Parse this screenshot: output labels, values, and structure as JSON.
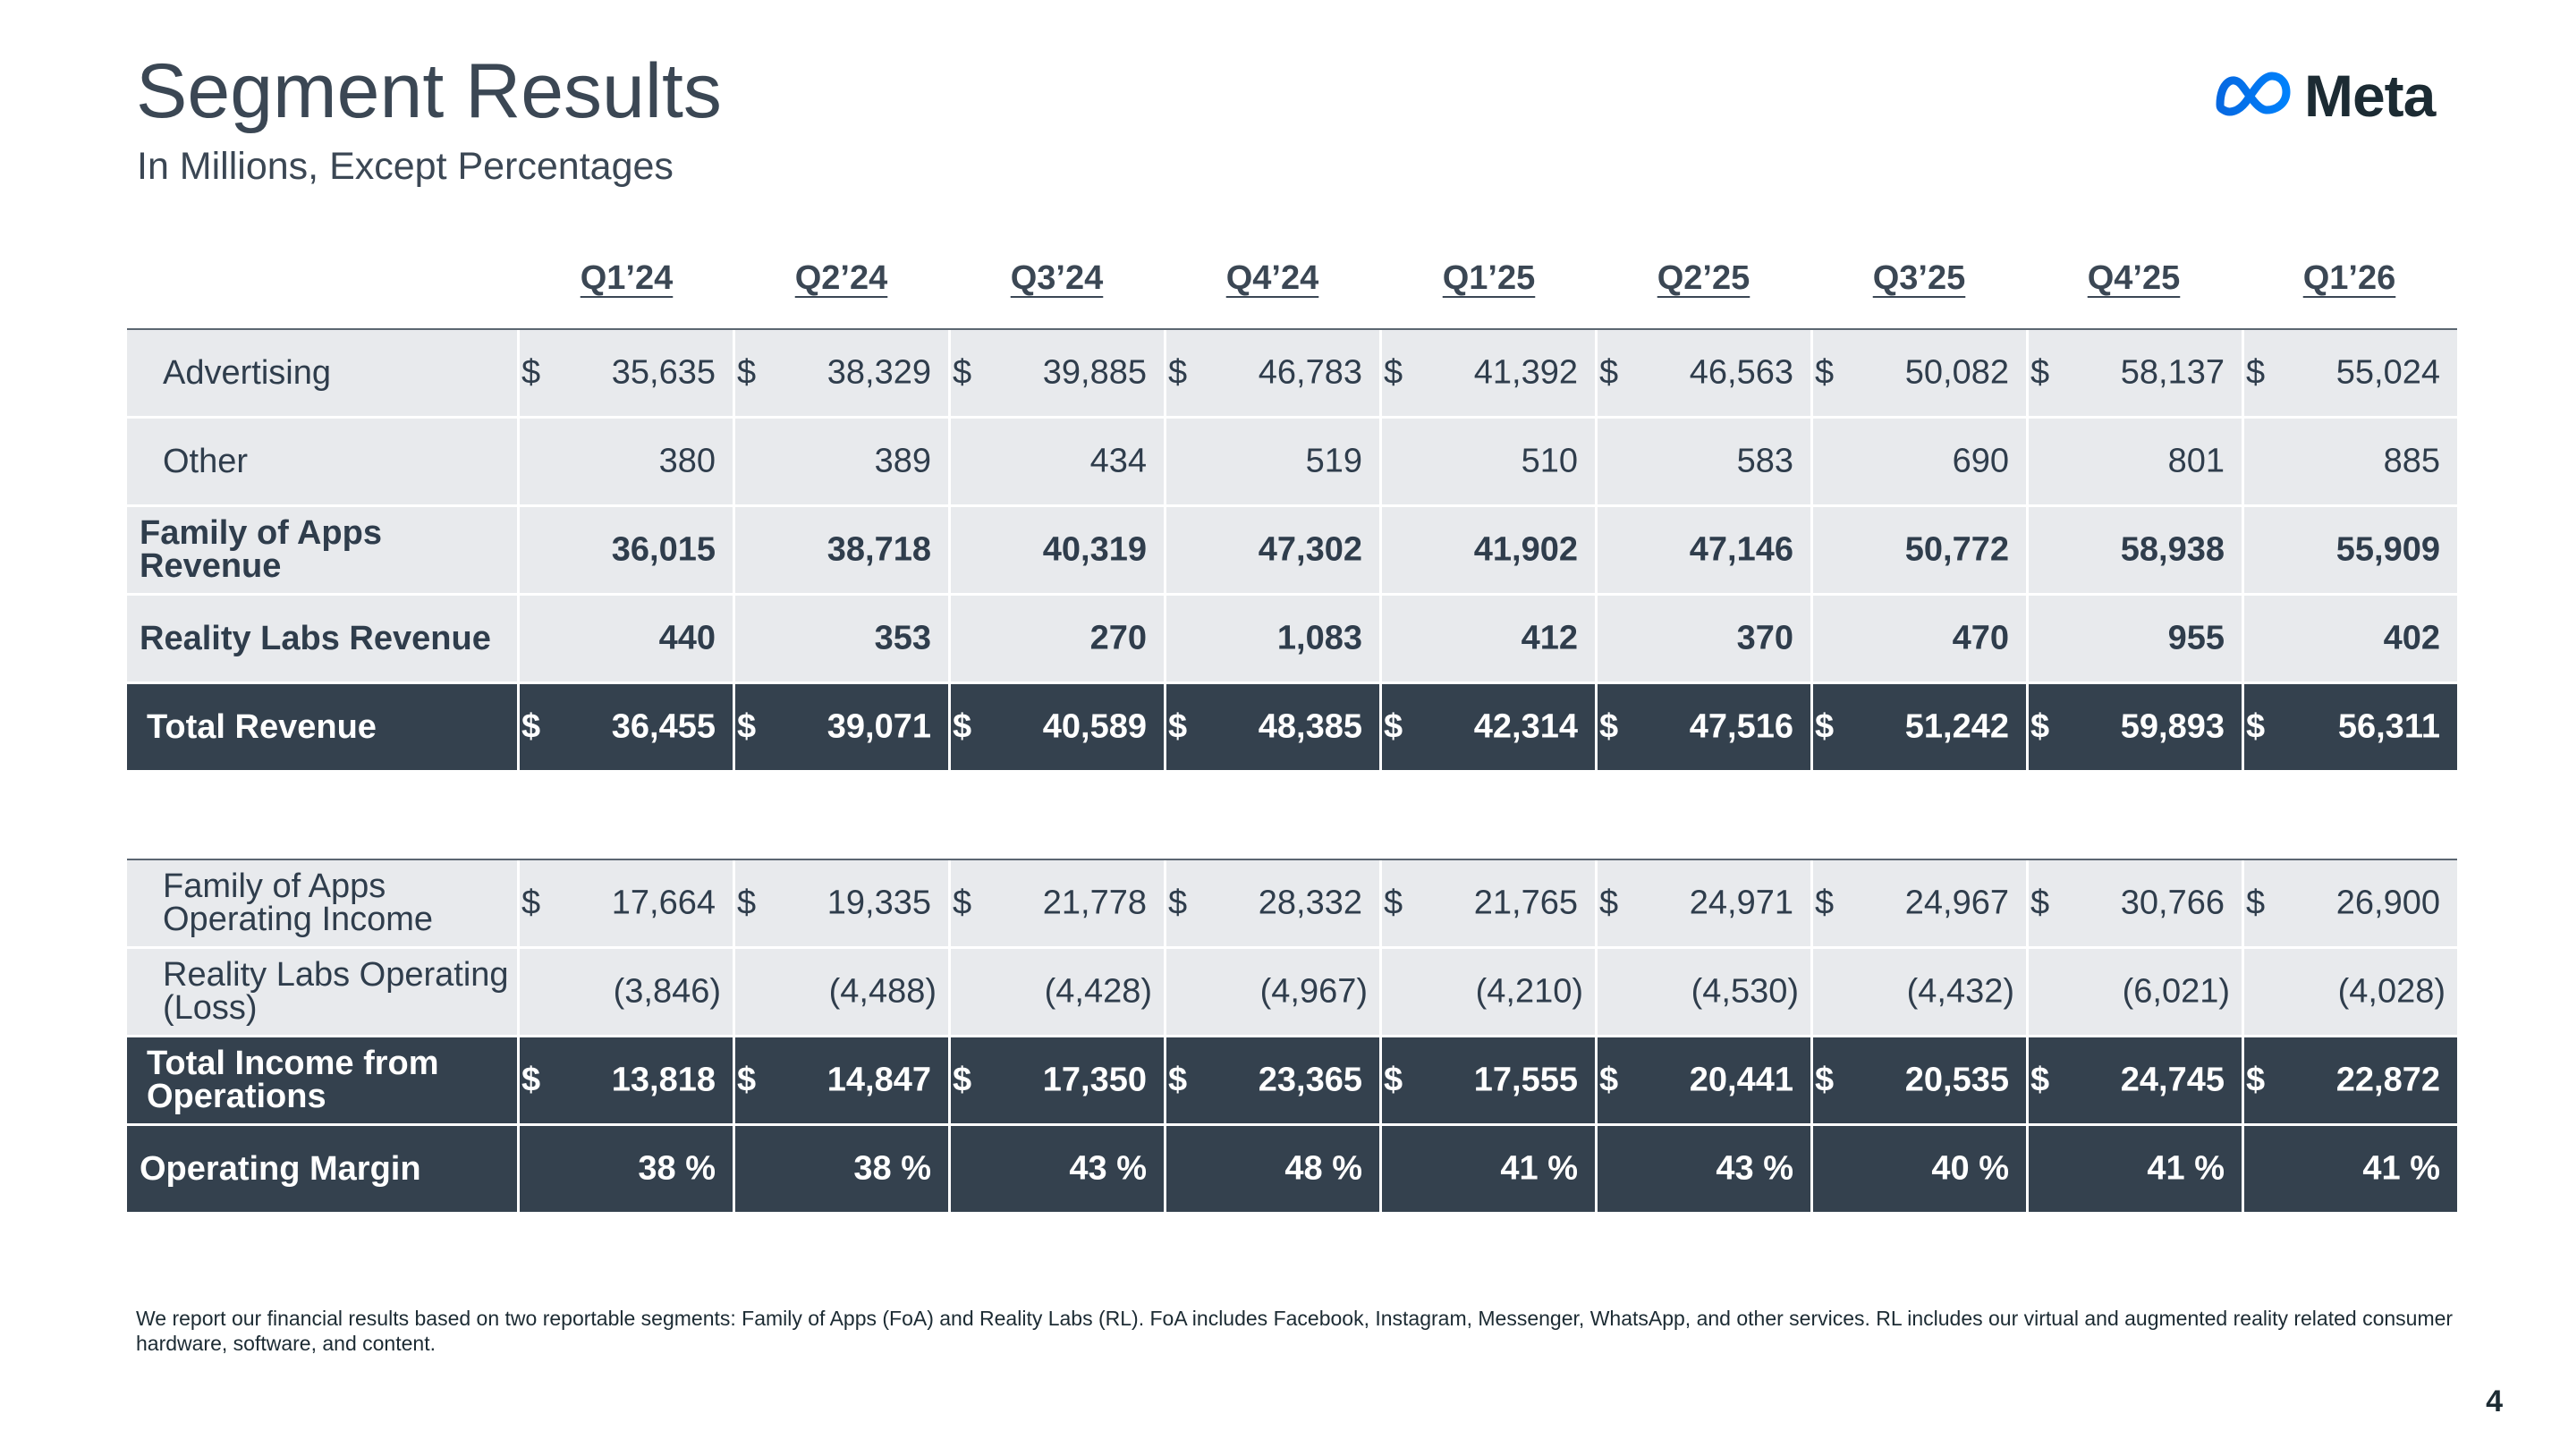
{
  "header": {
    "title": "Segment Results",
    "subtitle": "In Millions, Except Percentages"
  },
  "logo": {
    "icon": "meta-infinity-icon",
    "text": "Meta",
    "colors": [
      "#0668e1",
      "#0081fb",
      "#1c2b33"
    ]
  },
  "quarters": [
    "Q1’24",
    "Q2’24",
    "Q3’24",
    "Q4’24",
    "Q1’25",
    "Q2’25",
    "Q3’25",
    "Q4’25",
    "Q1’26"
  ],
  "colors": {
    "dark_row": "#34414e",
    "light_row": "#e8eaed",
    "text": "#3b4754"
  },
  "revenue_table": {
    "advertising": {
      "label": "Advertising",
      "currency": "$",
      "values": [
        "35,635",
        "38,329",
        "39,885",
        "46,783",
        "41,392",
        "46,563",
        "50,082",
        "58,137",
        "55,024"
      ]
    },
    "other": {
      "label": "Other",
      "values": [
        "380",
        "389",
        "434",
        "519",
        "510",
        "583",
        "690",
        "801",
        "885"
      ]
    },
    "foa_revenue": {
      "label": "Family of Apps Revenue",
      "values": [
        "36,015",
        "38,718",
        "40,319",
        "47,302",
        "41,902",
        "47,146",
        "50,772",
        "58,938",
        "55,909"
      ]
    },
    "rl_revenue": {
      "label": "Reality Labs Revenue",
      "values": [
        "440",
        "353",
        "270",
        "1,083",
        "412",
        "370",
        "470",
        "955",
        "402"
      ]
    },
    "total_revenue": {
      "label": "Total Revenue",
      "currency": "$",
      "values": [
        "36,455",
        "39,071",
        "40,589",
        "48,385",
        "42,314",
        "47,516",
        "51,242",
        "59,893",
        "56,311"
      ]
    }
  },
  "income_table": {
    "foa_income": {
      "label": "Family of Apps Operating Income",
      "currency": "$",
      "values": [
        "17,664",
        "19,335",
        "21,778",
        "28,332",
        "21,765",
        "24,971",
        "24,967",
        "30,766",
        "26,900"
      ]
    },
    "rl_loss": {
      "label": "Reality Labs Operating (Loss)",
      "values": [
        "(3,846)",
        "(4,488)",
        "(4,428)",
        "(4,967)",
        "(4,210)",
        "(4,530)",
        "(4,432)",
        "(6,021)",
        "(4,028)"
      ]
    },
    "total_income": {
      "label": "Total Income from Operations",
      "currency": "$",
      "values": [
        "13,818",
        "14,847",
        "17,350",
        "23,365",
        "17,555",
        "20,441",
        "20,535",
        "24,745",
        "22,872"
      ]
    },
    "operating_margin": {
      "label": "Operating Margin",
      "values": [
        "38 %",
        "38 %",
        "43 %",
        "48 %",
        "41 %",
        "43 %",
        "40 %",
        "41 %",
        "41 %"
      ]
    }
  },
  "footnote": "We report our financial results based on two reportable segments: Family of Apps (FoA) and Reality Labs (RL).  FoA includes Facebook, Instagram, Messenger, WhatsApp, and other services. RL includes our virtual and augmented reality related consumer hardware, software, and content.",
  "page_number": "4"
}
